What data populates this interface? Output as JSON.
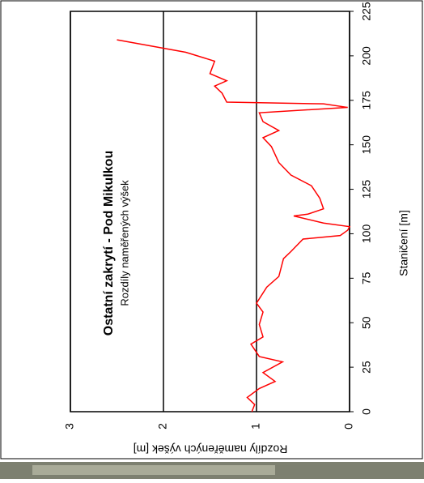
{
  "chart_data": {
    "type": "line",
    "title": "Ostatní zakrytí - Pod Mikulkou",
    "subtitle": "Rozdíly naměřených výšek",
    "x_label": "Staničení [m]",
    "y_label": "Rozdíly naměřených výšek [m]",
    "x": [
      0,
      4,
      8,
      13,
      17,
      22,
      28,
      31,
      38,
      42,
      49,
      56,
      61,
      70,
      76,
      86,
      90,
      97,
      99,
      102,
      104,
      106,
      110,
      111,
      114,
      120,
      127,
      133,
      140,
      149,
      154,
      158,
      163,
      168,
      171,
      173,
      174,
      179,
      183,
      186,
      190,
      197,
      202,
      209
    ],
    "series": [
      {
        "name": "Rozdíly",
        "color": "#ff0000",
        "values": [
          1.05,
          1.02,
          1.1,
          0.97,
          0.8,
          0.93,
          0.72,
          0.97,
          1.06,
          0.93,
          0.97,
          0.93,
          1.0,
          0.89,
          0.76,
          0.71,
          0.63,
          0.5,
          0.1,
          0.02,
          0.0,
          0.28,
          0.6,
          0.45,
          0.28,
          0.32,
          0.41,
          0.63,
          0.76,
          0.84,
          0.93,
          0.76,
          0.93,
          0.97,
          0.02,
          0.28,
          1.32,
          1.37,
          1.45,
          1.32,
          1.5,
          1.45,
          1.76,
          2.5
        ]
      }
    ],
    "xlim": [
      0,
      225
    ],
    "xticks": [
      0,
      25,
      50,
      75,
      100,
      125,
      150,
      175,
      200,
      225
    ],
    "ylim": [
      0,
      3
    ],
    "yticks": [
      0,
      1,
      2,
      3
    ],
    "grid": true
  }
}
